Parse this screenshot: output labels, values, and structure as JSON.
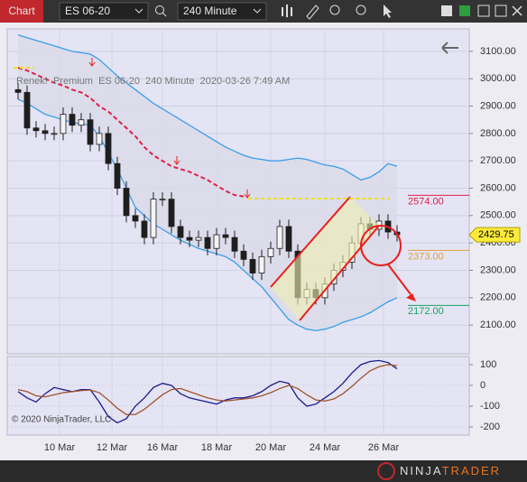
{
  "toolbar": {
    "title": "Chart",
    "instrument": "ES 06-20",
    "interval": "240 Minute"
  },
  "chart_data": [
    {
      "type": "candlestick",
      "info": "Renek!  Premium  ES 06-20  240 Minute  2020-03-26 7:49 AM",
      "categories": [
        null,
        null,
        null,
        null,
        null,
        null,
        null,
        null,
        null,
        null,
        null,
        null,
        null,
        null,
        null,
        null,
        null,
        null,
        null,
        null,
        null,
        null,
        null,
        null,
        null,
        null,
        null,
        null,
        null,
        null,
        null,
        null,
        null,
        null,
        null,
        null,
        null,
        null,
        null,
        null,
        null,
        null,
        null
      ],
      "xlim": [
        -1.2,
        50
      ],
      "xticks": [
        {
          "value": 4.6,
          "label": "10 Mar"
        },
        {
          "value": 10.4,
          "label": "12 Mar"
        },
        {
          "value": 16,
          "label": "16 Mar"
        },
        {
          "value": 22,
          "label": "18 Mar"
        },
        {
          "value": 28,
          "label": "20 Mar"
        },
        {
          "value": 34,
          "label": "24 Mar"
        },
        {
          "value": 40.5,
          "label": "26 Mar"
        }
      ],
      "ylim": [
        1995,
        3182
      ],
      "yticks": [
        {
          "value": 2100,
          "label": "2100.00"
        },
        {
          "value": 2200,
          "label": "2200.00"
        },
        {
          "value": 2300,
          "label": "2300.00"
        },
        {
          "value": 2400,
          "label": "2400.00"
        },
        {
          "value": 2500,
          "label": "2500.00"
        },
        {
          "value": 2600,
          "label": "2600.00"
        },
        {
          "value": 2700,
          "label": "2700.00"
        },
        {
          "value": 2800,
          "label": "2800.00"
        },
        {
          "value": 2900,
          "label": "2900.00"
        },
        {
          "value": 3000,
          "label": "3000.00"
        },
        {
          "value": 3100,
          "label": "3100.00"
        }
      ],
      "grid": true,
      "open": [
        2960,
        2950,
        2820,
        2810,
        2800,
        2800,
        2870,
        2830,
        2850,
        2760,
        2800,
        2690,
        2600,
        2500,
        2480,
        2420,
        2560,
        2560,
        2460,
        2420,
        2410,
        2420,
        2380,
        2430,
        2420,
        2370,
        2340,
        2290,
        2350,
        2380,
        2460,
        2370,
        2200,
        2230,
        2200,
        2250,
        2300,
        2330,
        2400,
        2470,
        2450,
        2480,
        2440
      ],
      "high": [
        2985,
        2975,
        2845,
        2835,
        2825,
        2895,
        2895,
        2875,
        2875,
        2825,
        2825,
        2715,
        2625,
        2525,
        2505,
        2585,
        2585,
        2585,
        2485,
        2445,
        2445,
        2445,
        2455,
        2455,
        2445,
        2395,
        2365,
        2375,
        2405,
        2485,
        2485,
        2395,
        2255,
        2255,
        2275,
        2325,
        2355,
        2425,
        2495,
        2495,
        2505,
        2505,
        2465
      ],
      "low": [
        2925,
        2795,
        2785,
        2775,
        2775,
        2775,
        2805,
        2805,
        2735,
        2735,
        2665,
        2575,
        2475,
        2455,
        2395,
        2395,
        2535,
        2435,
        2395,
        2385,
        2385,
        2355,
        2355,
        2395,
        2345,
        2315,
        2265,
        2265,
        2325,
        2355,
        2345,
        2175,
        2175,
        2175,
        2175,
        2225,
        2275,
        2305,
        2375,
        2425,
        2425,
        2415,
        2405
      ],
      "close": [
        2950,
        2820,
        2810,
        2800,
        2800,
        2870,
        2830,
        2850,
        2760,
        2800,
        2690,
        2600,
        2500,
        2480,
        2420,
        2560,
        2560,
        2460,
        2420,
        2410,
        2420,
        2380,
        2430,
        2420,
        2370,
        2340,
        2290,
        2350,
        2380,
        2460,
        2370,
        2200,
        2230,
        2200,
        2250,
        2300,
        2330,
        2400,
        2470,
        2450,
        2480,
        2440,
        2430
      ],
      "up_color": "#f4f4f4",
      "down_color": "#1e1e1e",
      "wick_color": "#1e1e1e",
      "overlays": [
        {
          "color": "#3a9ee8",
          "values": [
            3160,
            3150,
            3140,
            3130,
            3120,
            3110,
            3100,
            3095,
            3090,
            3070,
            3040,
            3010,
            2985,
            2960,
            2935,
            2910,
            2890,
            2870,
            2850,
            2830,
            2810,
            2790,
            2770,
            2750,
            2735,
            2720,
            2710,
            2705,
            2700,
            2700,
            2705,
            2710,
            2705,
            2695,
            2685,
            2680,
            2670,
            2650,
            2630,
            2640,
            2660,
            2690,
            2680
          ]
        },
        {
          "color": "#3a9ee8",
          "values": [
            2925,
            2910,
            2890,
            2870,
            2860,
            2850,
            2840,
            2835,
            2830,
            2790,
            2730,
            2670,
            2600,
            2530,
            2500,
            2470,
            2450,
            2430,
            2410,
            2395,
            2380,
            2370,
            2360,
            2350,
            2330,
            2300,
            2270,
            2240,
            2200,
            2160,
            2120,
            2100,
            2085,
            2080,
            2085,
            2095,
            2110,
            2120,
            2130,
            2145,
            2165,
            2185,
            2200
          ]
        },
        {
          "color": "#e0204a",
          "dash": true,
          "values": [
            3040,
            3030,
            3015,
            3000,
            2985,
            2975,
            2960,
            2950,
            2930,
            2900,
            2880,
            2850,
            2820,
            2790,
            2750,
            2720,
            2700,
            2680,
            2670,
            2660,
            2645,
            2630,
            2610,
            2590,
            2575,
            2570,
            null,
            null,
            null,
            null,
            null,
            null,
            null,
            null,
            null,
            null,
            null,
            null,
            null,
            null,
            null,
            null,
            null
          ]
        }
      ],
      "band_fill": "#d9d9e8",
      "price_levels": [
        {
          "value": 2574,
          "label": "2574.00",
          "color": "#e0204a"
        },
        {
          "value": 2373,
          "label": "2373.00",
          "color": "#e0a040"
        },
        {
          "value": 2172,
          "label": "2172.00",
          "color": "#20a060"
        }
      ],
      "last_price": 2429.75,
      "last_price_color": "#ffeb3b"
    },
    {
      "type": "line",
      "xlim": [
        -1.2,
        50
      ],
      "ylim": [
        -239,
        139
      ],
      "yticks": [
        100,
        0,
        -100,
        -200
      ],
      "grid": true,
      "series": [
        {
          "color": "#1a1a8c",
          "values": [
            -30,
            -60,
            -80,
            -40,
            -10,
            -20,
            -30,
            -20,
            -20,
            -80,
            -150,
            -180,
            -160,
            -100,
            -60,
            -10,
            10,
            0,
            -40,
            -60,
            -70,
            -80,
            -90,
            -70,
            -60,
            -60,
            -50,
            -30,
            0,
            20,
            10,
            -60,
            -100,
            -90,
            -60,
            -30,
            10,
            60,
            100,
            115,
            120,
            110,
            80
          ]
        },
        {
          "color": "#a0522d",
          "values": [
            -20,
            -30,
            -50,
            -55,
            -45,
            -35,
            -30,
            -25,
            -22,
            -35,
            -70,
            -110,
            -140,
            -140,
            -115,
            -80,
            -45,
            -20,
            -15,
            -30,
            -45,
            -60,
            -70,
            -75,
            -70,
            -65,
            -60,
            -50,
            -35,
            -15,
            0,
            -15,
            -45,
            -70,
            -75,
            -65,
            -40,
            -5,
            35,
            70,
            90,
            100,
            95
          ]
        }
      ]
    }
  ],
  "copyright": "© 2020 NinjaTrader, LLC",
  "logo": {
    "left": "NINJA",
    "right": "TRADER"
  }
}
